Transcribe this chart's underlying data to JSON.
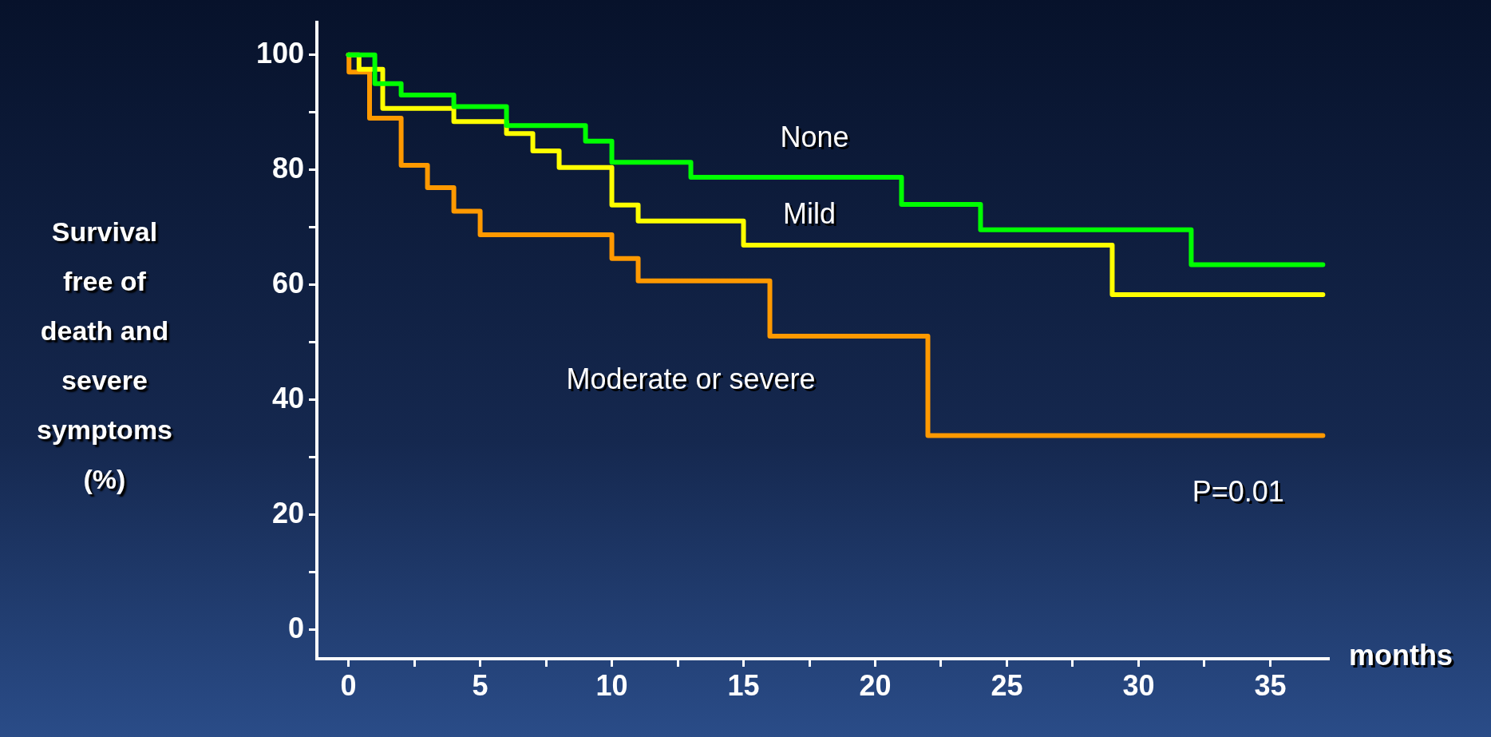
{
  "chart_data": {
    "type": "step",
    "xlabel": "months",
    "ylabel": "Survival\nfree of\ndeath and\nsevere\nsymptoms\n(%)",
    "xlim": [
      -1.2,
      37.2
    ],
    "ylim": [
      -5,
      105.7
    ],
    "xticks": [
      0,
      {
        "value": 2.5,
        "label": null
      },
      5,
      {
        "value": 7.5,
        "label": null
      },
      10,
      {
        "value": 12.5,
        "label": null
      },
      15,
      {
        "value": 17.5,
        "label": null
      },
      20,
      {
        "value": 22.5,
        "label": null
      },
      25,
      {
        "value": 27.5,
        "label": null
      },
      30,
      {
        "value": 32.5,
        "label": null
      },
      35
    ],
    "yticks": [
      0,
      {
        "value": 10,
        "label": null
      },
      20,
      {
        "value": 30,
        "label": null
      },
      40,
      {
        "value": 50,
        "label": null
      },
      60,
      {
        "value": 70,
        "label": null
      },
      80,
      {
        "value": 90,
        "label": null
      },
      100
    ],
    "grid": false,
    "legend": false,
    "series": [
      {
        "name": "None",
        "color": "#00ff00",
        "x": [
          0,
          1,
          2,
          4,
          6,
          9,
          10,
          13,
          21,
          24,
          32,
          37
        ],
        "values": [
          100,
          95,
          93,
          91,
          87.7,
          85,
          81.3,
          78.7,
          74,
          69.6,
          63.5,
          63.5
        ]
      },
      {
        "name": "Mild",
        "color": "#ffff00",
        "x": [
          0,
          0.4,
          1.3,
          4,
          6,
          7,
          8,
          10,
          11,
          15,
          29,
          37
        ],
        "values": [
          100,
          97.5,
          90.7,
          88.4,
          86.3,
          83.3,
          80.4,
          73.9,
          71.1,
          66.9,
          58.3,
          58.3
        ]
      },
      {
        "name": "Moderate or severe",
        "color": "#ff9900",
        "x": [
          0,
          0.02,
          0.8,
          2,
          3,
          4,
          5,
          10,
          11,
          16,
          22,
          37
        ],
        "values": [
          100,
          97,
          89,
          80.8,
          76.9,
          72.8,
          68.7,
          64.6,
          60.7,
          51.1,
          33.8,
          33.8
        ]
      }
    ],
    "annotations": [
      "P=0.01"
    ]
  }
}
